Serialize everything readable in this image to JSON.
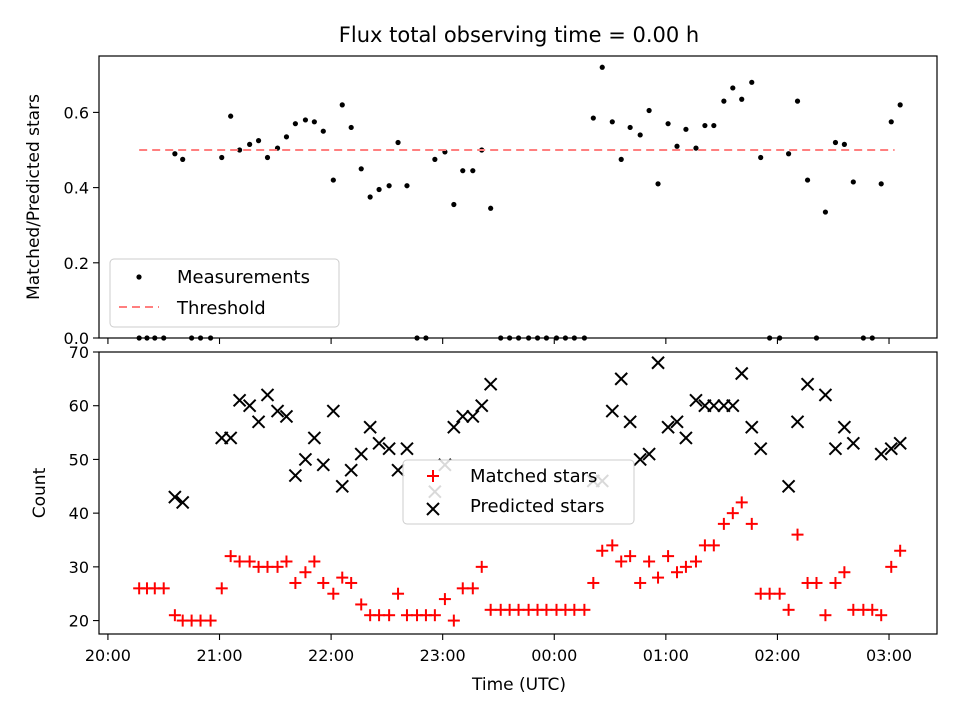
{
  "chart_data": [
    {
      "type": "scatter",
      "title": "Flux total observing time = 0.00 h",
      "ylabel": "Matched/Predicted stars",
      "ylim": [
        0.0,
        0.75
      ],
      "yticks": [
        "0.0",
        "0.2",
        "0.4",
        "0.6"
      ],
      "grid": false,
      "legend_position": "lower-left",
      "series": [
        {
          "name": "Measurements",
          "marker": "dot",
          "color": "#000000",
          "points": [
            [
              20.28,
              0.0
            ],
            [
              20.35,
              0.0
            ],
            [
              20.42,
              0.0
            ],
            [
              20.5,
              0.0
            ],
            [
              20.6,
              0.49
            ],
            [
              20.67,
              0.475
            ],
            [
              20.75,
              0.0
            ],
            [
              20.83,
              0.0
            ],
            [
              20.92,
              0.0
            ],
            [
              21.02,
              0.48
            ],
            [
              21.1,
              0.59
            ],
            [
              21.18,
              0.5
            ],
            [
              21.27,
              0.515
            ],
            [
              21.35,
              0.525
            ],
            [
              21.43,
              0.48
            ],
            [
              21.52,
              0.505
            ],
            [
              21.6,
              0.535
            ],
            [
              21.68,
              0.57
            ],
            [
              21.77,
              0.58
            ],
            [
              21.85,
              0.575
            ],
            [
              21.93,
              0.55
            ],
            [
              22.02,
              0.42
            ],
            [
              22.1,
              0.62
            ],
            [
              22.18,
              0.56
            ],
            [
              22.27,
              0.45
            ],
            [
              22.35,
              0.375
            ],
            [
              22.43,
              0.395
            ],
            [
              22.52,
              0.405
            ],
            [
              22.6,
              0.52
            ],
            [
              22.68,
              0.405
            ],
            [
              22.77,
              0.0
            ],
            [
              22.85,
              0.0
            ],
            [
              22.93,
              0.475
            ],
            [
              23.02,
              0.495
            ],
            [
              23.1,
              0.355
            ],
            [
              23.18,
              0.445
            ],
            [
              23.27,
              0.445
            ],
            [
              23.35,
              0.5
            ],
            [
              23.43,
              0.345
            ],
            [
              23.52,
              0.0
            ],
            [
              23.6,
              0.0
            ],
            [
              23.68,
              0.0
            ],
            [
              23.77,
              0.0
            ],
            [
              23.85,
              0.0
            ],
            [
              23.93,
              0.0
            ],
            [
              24.02,
              0.0
            ],
            [
              24.1,
              0.0
            ],
            [
              24.18,
              0.0
            ],
            [
              24.27,
              0.0
            ],
            [
              24.35,
              0.585
            ],
            [
              24.43,
              0.72
            ],
            [
              24.52,
              0.575
            ],
            [
              24.6,
              0.475
            ],
            [
              24.68,
              0.56
            ],
            [
              24.77,
              0.54
            ],
            [
              24.85,
              0.605
            ],
            [
              24.93,
              0.41
            ],
            [
              25.02,
              0.57
            ],
            [
              25.1,
              0.51
            ],
            [
              25.18,
              0.555
            ],
            [
              25.27,
              0.505
            ],
            [
              25.35,
              0.565
            ],
            [
              25.43,
              0.565
            ],
            [
              25.52,
              0.63
            ],
            [
              25.6,
              0.665
            ],
            [
              25.68,
              0.635
            ],
            [
              25.77,
              0.68
            ],
            [
              25.85,
              0.48
            ],
            [
              25.93,
              0.0
            ],
            [
              26.02,
              0.0
            ],
            [
              26.1,
              0.49
            ],
            [
              26.18,
              0.63
            ],
            [
              26.27,
              0.42
            ],
            [
              26.35,
              0.0
            ],
            [
              26.43,
              0.335
            ],
            [
              26.52,
              0.52
            ],
            [
              26.6,
              0.515
            ],
            [
              26.68,
              0.415
            ],
            [
              26.77,
              0.0
            ],
            [
              26.85,
              0.0
            ],
            [
              26.93,
              0.41
            ],
            [
              27.02,
              0.575
            ],
            [
              27.1,
              0.62
            ]
          ]
        },
        {
          "name": "Threshold",
          "style": "dashed",
          "color": "#ff7f7f",
          "x": [
            20.28,
            27.05
          ],
          "y": [
            0.5,
            0.5
          ]
        }
      ]
    },
    {
      "type": "scatter",
      "xlabel": "Time (UTC)",
      "ylabel": "Count",
      "ylim": [
        17.5,
        70
      ],
      "yticks": [
        "20",
        "30",
        "40",
        "50",
        "60",
        "70"
      ],
      "xlim": [
        19.92,
        27.43
      ],
      "xticks": [
        "20:00",
        "21:00",
        "22:00",
        "23:00",
        "00:00",
        "01:00",
        "02:00",
        "03:00"
      ],
      "grid": false,
      "legend_position": "center",
      "series": [
        {
          "name": "Matched stars",
          "marker": "plus",
          "color": "#ff0000",
          "points": [
            [
              20.28,
              26
            ],
            [
              20.35,
              26
            ],
            [
              20.42,
              26
            ],
            [
              20.5,
              26
            ],
            [
              20.6,
              21
            ],
            [
              20.67,
              20
            ],
            [
              20.75,
              20
            ],
            [
              20.83,
              20
            ],
            [
              20.92,
              20
            ],
            [
              21.02,
              26
            ],
            [
              21.1,
              32
            ],
            [
              21.18,
              31
            ],
            [
              21.27,
              31
            ],
            [
              21.35,
              30
            ],
            [
              21.43,
              30
            ],
            [
              21.52,
              30
            ],
            [
              21.6,
              31
            ],
            [
              21.68,
              27
            ],
            [
              21.77,
              29
            ],
            [
              21.85,
              31
            ],
            [
              21.93,
              27
            ],
            [
              22.02,
              25
            ],
            [
              22.1,
              28
            ],
            [
              22.18,
              27
            ],
            [
              22.27,
              23
            ],
            [
              22.35,
              21
            ],
            [
              22.43,
              21
            ],
            [
              22.52,
              21
            ],
            [
              22.6,
              25
            ],
            [
              22.68,
              21
            ],
            [
              22.77,
              21
            ],
            [
              22.85,
              21
            ],
            [
              22.93,
              21
            ],
            [
              23.02,
              24
            ],
            [
              23.1,
              20
            ],
            [
              23.18,
              26
            ],
            [
              23.27,
              26
            ],
            [
              23.35,
              30
            ],
            [
              23.43,
              22
            ],
            [
              23.52,
              22
            ],
            [
              23.6,
              22
            ],
            [
              23.68,
              22
            ],
            [
              23.77,
              22
            ],
            [
              23.85,
              22
            ],
            [
              23.93,
              22
            ],
            [
              24.02,
              22
            ],
            [
              24.1,
              22
            ],
            [
              24.18,
              22
            ],
            [
              24.27,
              22
            ],
            [
              24.35,
              27
            ],
            [
              24.43,
              33
            ],
            [
              24.52,
              34
            ],
            [
              24.6,
              31
            ],
            [
              24.68,
              32
            ],
            [
              24.77,
              27
            ],
            [
              24.85,
              31
            ],
            [
              24.93,
              28
            ],
            [
              25.02,
              32
            ],
            [
              25.1,
              29
            ],
            [
              25.18,
              30
            ],
            [
              25.27,
              31
            ],
            [
              25.35,
              34
            ],
            [
              25.43,
              34
            ],
            [
              25.52,
              38
            ],
            [
              25.6,
              40
            ],
            [
              25.68,
              42
            ],
            [
              25.77,
              38
            ],
            [
              25.85,
              25
            ],
            [
              25.93,
              25
            ],
            [
              26.02,
              25
            ],
            [
              26.1,
              22
            ],
            [
              26.18,
              36
            ],
            [
              26.27,
              27
            ],
            [
              26.35,
              27
            ],
            [
              26.43,
              21
            ],
            [
              26.52,
              27
            ],
            [
              26.6,
              29
            ],
            [
              26.68,
              22
            ],
            [
              26.77,
              22
            ],
            [
              26.85,
              22
            ],
            [
              26.93,
              21
            ],
            [
              27.02,
              30
            ],
            [
              27.1,
              33
            ]
          ]
        },
        {
          "name": "Predicted stars",
          "marker": "x",
          "color": "#000000",
          "points": [
            [
              20.6,
              43
            ],
            [
              20.67,
              42
            ],
            [
              21.02,
              54
            ],
            [
              21.1,
              54
            ],
            [
              21.18,
              61
            ],
            [
              21.27,
              60
            ],
            [
              21.35,
              57
            ],
            [
              21.43,
              62
            ],
            [
              21.52,
              59
            ],
            [
              21.6,
              58
            ],
            [
              21.68,
              47
            ],
            [
              21.77,
              50
            ],
            [
              21.85,
              54
            ],
            [
              21.93,
              49
            ],
            [
              22.02,
              59
            ],
            [
              22.1,
              45
            ],
            [
              22.18,
              48
            ],
            [
              22.27,
              51
            ],
            [
              22.35,
              56
            ],
            [
              22.43,
              53
            ],
            [
              22.52,
              52
            ],
            [
              22.6,
              48
            ],
            [
              22.68,
              52
            ],
            [
              22.93,
              44
            ],
            [
              23.02,
              49
            ],
            [
              23.1,
              56
            ],
            [
              23.18,
              58
            ],
            [
              23.27,
              58
            ],
            [
              23.35,
              60
            ],
            [
              23.43,
              64
            ],
            [
              24.35,
              46
            ],
            [
              24.43,
              46
            ],
            [
              24.52,
              59
            ],
            [
              24.6,
              65
            ],
            [
              24.68,
              57
            ],
            [
              24.77,
              50
            ],
            [
              24.85,
              51
            ],
            [
              24.93,
              68
            ],
            [
              25.02,
              56
            ],
            [
              25.1,
              57
            ],
            [
              25.18,
              54
            ],
            [
              25.27,
              61
            ],
            [
              25.35,
              60
            ],
            [
              25.43,
              60
            ],
            [
              25.52,
              60
            ],
            [
              25.6,
              60
            ],
            [
              25.68,
              66
            ],
            [
              25.77,
              56
            ],
            [
              25.85,
              52
            ],
            [
              26.1,
              45
            ],
            [
              26.18,
              57
            ],
            [
              26.27,
              64
            ],
            [
              26.43,
              62
            ],
            [
              26.52,
              52
            ],
            [
              26.6,
              56
            ],
            [
              26.68,
              53
            ],
            [
              26.93,
              51
            ],
            [
              27.02,
              52
            ],
            [
              27.1,
              53
            ]
          ]
        }
      ]
    }
  ]
}
